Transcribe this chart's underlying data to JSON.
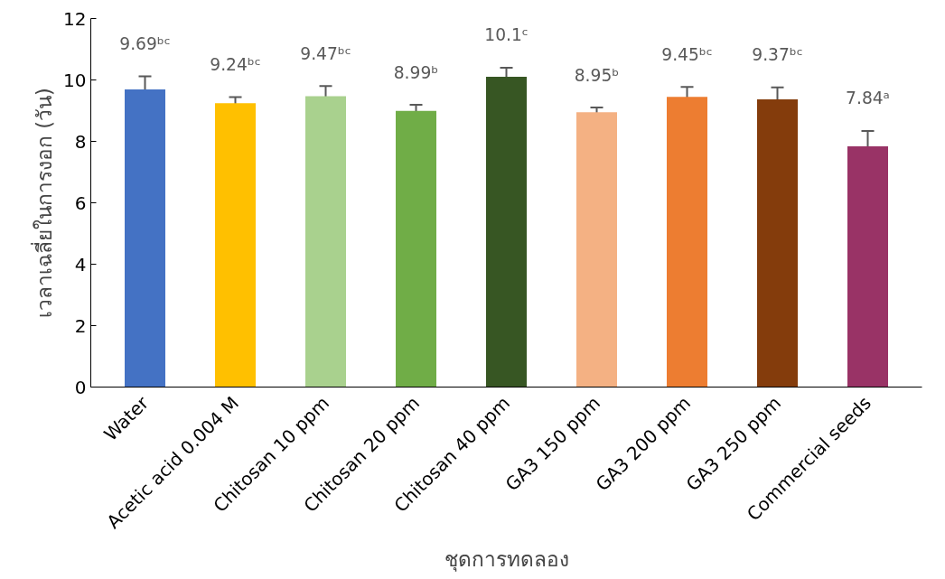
{
  "chart_data": {
    "type": "bar",
    "xlabel": "ชุดการทดลอง",
    "ylabel": "เวลาเฉลี่ยในการงอก (วัน)",
    "categories": [
      "Water",
      "Acetic acid 0.004 M",
      "Chitosan 10 ppm",
      "Chitosan 20 ppm",
      "Chitosan 40 ppm",
      "GA3 150 ppm",
      "GA3 200 ppm",
      "GA3 250 ppm",
      "Commercial seeds"
    ],
    "values": [
      9.69,
      9.24,
      9.47,
      8.99,
      10.1,
      8.95,
      9.45,
      9.37,
      7.84
    ],
    "colors": [
      "#4472c4",
      "#ffc000",
      "#a9d18e",
      "#70ad47",
      "#375623",
      "#f4b183",
      "#ed7d31",
      "#843c0c",
      "#993366"
    ],
    "errors": [
      0.43,
      0.2,
      0.33,
      0.2,
      0.3,
      0.15,
      0.32,
      0.39,
      0.5
    ],
    "value_labels": [
      "9.69ᵇᶜ",
      "9.24ᵇᶜ",
      "9.47ᵇᶜ",
      "8.99ᵇ",
      "10.1ᶜ",
      "8.95ᵇ",
      "9.45ᵇᶜ",
      "9.37ᵇᶜ",
      "7.84ᵃ"
    ],
    "ylim": [
      0,
      12
    ],
    "yticks": [
      0,
      2,
      4,
      6,
      8,
      10,
      12
    ],
    "grid": false
  }
}
